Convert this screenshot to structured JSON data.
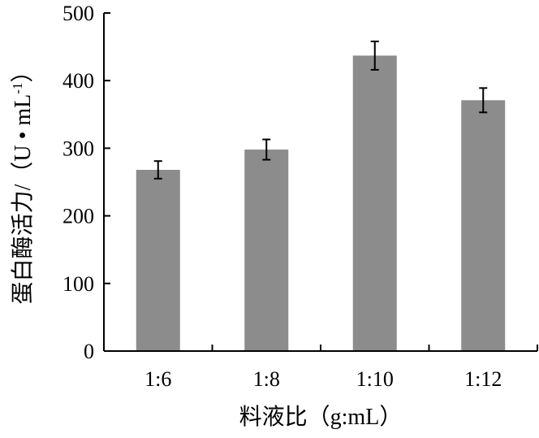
{
  "chart_data": {
    "type": "bar",
    "categories": [
      "1:6",
      "1:8",
      "1:10",
      "1:12"
    ],
    "values": [
      268,
      298,
      437,
      371
    ],
    "errors": [
      13,
      15,
      21,
      18
    ],
    "xlabel": "料液比（g:mL）",
    "ylabel_main": "蛋白酶活力/（U • mL",
    "ylabel_sup": "-1",
    "ylabel_end": "）",
    "ylim": [
      0,
      500
    ],
    "yticks": [
      0,
      100,
      200,
      300,
      400,
      500
    ],
    "bar_color": "#8c8c8c",
    "grid": false
  }
}
